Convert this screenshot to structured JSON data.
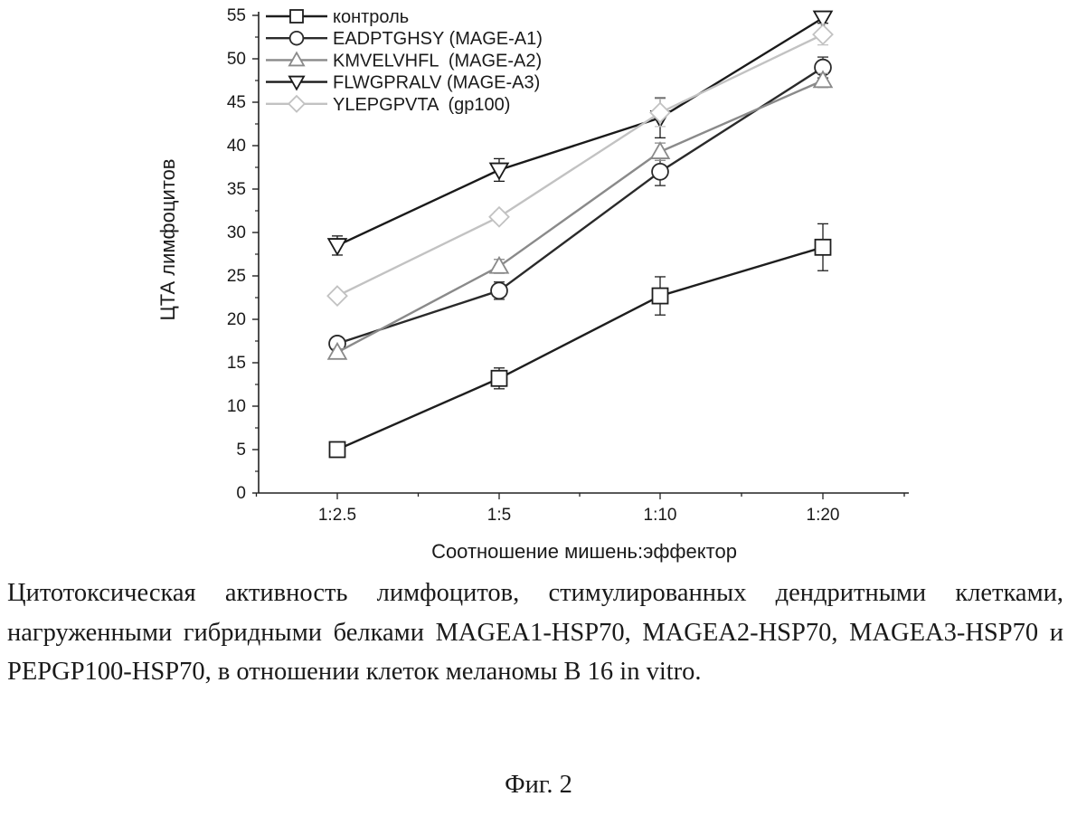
{
  "chart_data": {
    "type": "line",
    "xlabel": "Соотношение мишень:эффектор",
    "ylabel": "ЦТА лимфоцитов",
    "categories": [
      "1:2.5",
      "1:5",
      "1:10",
      "1:20"
    ],
    "ylim": [
      0,
      55
    ],
    "yticks": [
      0,
      5,
      10,
      15,
      20,
      25,
      30,
      35,
      40,
      45,
      50,
      55
    ],
    "grid": false,
    "legend_position": "top-left",
    "series": [
      {
        "name": "контроль",
        "marker": "square",
        "color": "#1e1e1e",
        "values": [
          5.0,
          13.2,
          22.7,
          28.3
        ],
        "errors": [
          0.5,
          1.2,
          2.2,
          2.7
        ]
      },
      {
        "name": "EADPTGHSY (MAGE-A1)",
        "marker": "circle",
        "color": "#2a2a2a",
        "values": [
          17.2,
          23.3,
          37.0,
          49.0
        ],
        "errors": [
          0.6,
          1.0,
          1.6,
          1.2
        ]
      },
      {
        "name": "KMVELVHFL  (MAGE-A2)",
        "marker": "triangle-up",
        "color": "#8a8a8a",
        "values": [
          16.2,
          26.1,
          39.3,
          47.5
        ],
        "errors": [
          0.4,
          0.8,
          1.0,
          0.8
        ]
      },
      {
        "name": "FLWGPRALV (MAGE-A3)",
        "marker": "triangle-down",
        "color": "#1a1a1a",
        "values": [
          28.5,
          37.2,
          43.2,
          54.7
        ],
        "errors": [
          1.1,
          1.3,
          2.3,
          0.6
        ]
      },
      {
        "name": "YLEPGPVTA  (gp100)",
        "marker": "diamond",
        "color": "#c2c2c2",
        "values": [
          22.7,
          31.8,
          43.8,
          52.8
        ],
        "errors": [
          0.5,
          0.6,
          1.6,
          1.2
        ]
      }
    ]
  },
  "caption": {
    "text": "Цитотоксическая активность лимфоцитов, стимулированных дендритными клетками, нагруженными гибридными белками MAGEA1-HSP70, MAGEA2-HSP70, MAGEA3-HSP70 и PEPGP100-HSP70, в отношении клеток меланомы B 16 in vitro.",
    "figure_label": "Фиг. 2"
  }
}
